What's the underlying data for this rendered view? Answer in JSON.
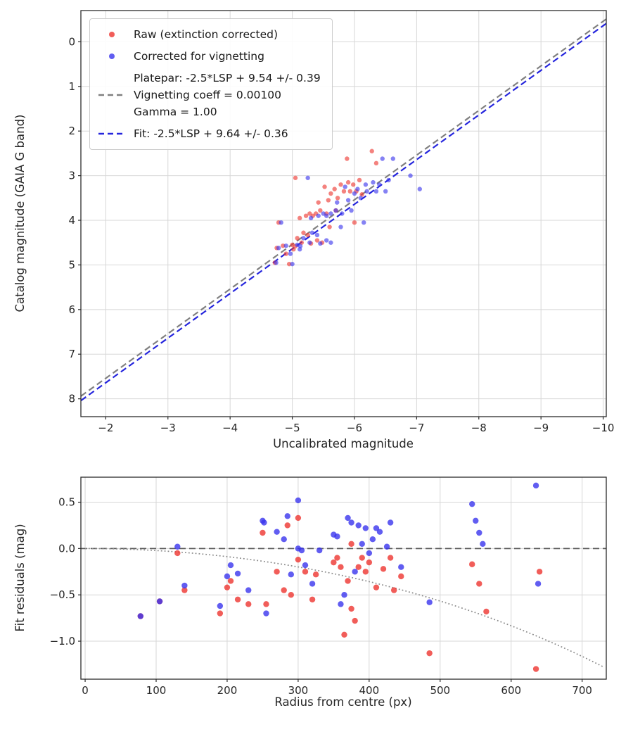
{
  "figure": {
    "background": "#ffffff"
  },
  "chart_data": [
    {
      "type": "scatter",
      "title": "",
      "xlabel": "Uncalibrated magnitude",
      "ylabel": "Catalog magnitude (GAIA G band)",
      "xlim": [
        -1.6,
        -10.05
      ],
      "ylim": [
        -0.7,
        8.4
      ],
      "x_axis_inverted": true,
      "grid": true,
      "x_tick_values": [
        -2,
        -3,
        -4,
        -5,
        -6,
        -7,
        -8,
        -9,
        -10
      ],
      "x_tick_labels": [
        "−2",
        "−3",
        "−4",
        "−5",
        "−6",
        "−7",
        "−8",
        "−9",
        "−10"
      ],
      "y_tick_values": [
        0,
        1,
        2,
        3,
        4,
        5,
        6,
        7,
        8
      ],
      "y_tick_labels": [
        "0",
        "1",
        "2",
        "3",
        "4",
        "5",
        "6",
        "7",
        "8"
      ],
      "series": [
        {
          "name": "raw-extinction-corrected",
          "label": "Raw (extinction corrected)",
          "color": "#ee352f",
          "points": [
            [
              -4.72,
              4.95
            ],
            [
              -4.75,
              4.62
            ],
            [
              -4.78,
              4.05
            ],
            [
              -4.85,
              4.57
            ],
            [
              -4.9,
              4.75
            ],
            [
              -4.95,
              4.98
            ],
            [
              -5.0,
              4.55
            ],
            [
              -5.02,
              4.65
            ],
            [
              -5.05,
              4.58
            ],
            [
              -5.05,
              3.05
            ],
            [
              -5.08,
              4.4
            ],
            [
              -5.12,
              3.95
            ],
            [
              -5.15,
              4.5
            ],
            [
              -5.18,
              4.28
            ],
            [
              -5.22,
              3.9
            ],
            [
              -5.25,
              4.33
            ],
            [
              -5.28,
              3.85
            ],
            [
              -5.3,
              4.52
            ],
            [
              -5.33,
              3.9
            ],
            [
              -5.38,
              3.85
            ],
            [
              -5.4,
              4.45
            ],
            [
              -5.42,
              3.6
            ],
            [
              -5.45,
              3.78
            ],
            [
              -5.48,
              4.5
            ],
            [
              -5.52,
              3.25
            ],
            [
              -5.55,
              3.85
            ],
            [
              -5.58,
              3.55
            ],
            [
              -5.6,
              4.15
            ],
            [
              -5.62,
              3.4
            ],
            [
              -5.68,
              3.3
            ],
            [
              -5.7,
              3.78
            ],
            [
              -5.73,
              3.5
            ],
            [
              -5.78,
              3.2
            ],
            [
              -5.83,
              3.35
            ],
            [
              -5.88,
              2.62
            ],
            [
              -5.9,
              3.15
            ],
            [
              -5.93,
              3.35
            ],
            [
              -5.98,
              3.2
            ],
            [
              -6.0,
              4.05
            ],
            [
              -6.03,
              3.35
            ],
            [
              -6.08,
              3.1
            ],
            [
              -6.12,
              3.42
            ],
            [
              -6.28,
              2.45
            ],
            [
              -6.35,
              2.72
            ]
          ]
        },
        {
          "name": "corrected-for-vignetting",
          "label": "Corrected for vignetting",
          "color": "#3a35ee",
          "points": [
            [
              -4.74,
              4.95
            ],
            [
              -4.78,
              4.62
            ],
            [
              -4.82,
              4.05
            ],
            [
              -4.9,
              4.57
            ],
            [
              -4.97,
              4.75
            ],
            [
              -5.0,
              4.98
            ],
            [
              -5.08,
              4.55
            ],
            [
              -5.12,
              4.65
            ],
            [
              -5.13,
              4.58
            ],
            [
              -5.25,
              3.05
            ],
            [
              -5.18,
              4.4
            ],
            [
              -5.3,
              3.95
            ],
            [
              -5.28,
              4.5
            ],
            [
              -5.32,
              4.28
            ],
            [
              -5.42,
              3.9
            ],
            [
              -5.4,
              4.33
            ],
            [
              -5.5,
              3.85
            ],
            [
              -5.45,
              4.52
            ],
            [
              -5.55,
              3.9
            ],
            [
              -5.62,
              3.85
            ],
            [
              -5.55,
              4.45
            ],
            [
              -5.72,
              3.6
            ],
            [
              -5.7,
              3.78
            ],
            [
              -5.62,
              4.5
            ],
            [
              -5.85,
              3.25
            ],
            [
              -5.8,
              3.85
            ],
            [
              -5.9,
              3.55
            ],
            [
              -5.78,
              4.15
            ],
            [
              -6.0,
              3.4
            ],
            [
              -6.05,
              3.3
            ],
            [
              -5.95,
              3.78
            ],
            [
              -6.1,
              3.5
            ],
            [
              -6.18,
              3.2
            ],
            [
              -6.2,
              3.35
            ],
            [
              -6.45,
              2.62
            ],
            [
              -6.3,
              3.15
            ],
            [
              -6.35,
              3.35
            ],
            [
              -6.4,
              3.2
            ],
            [
              -6.15,
              4.05
            ],
            [
              -6.5,
              3.35
            ],
            [
              -6.55,
              3.1
            ],
            [
              -6.62,
              2.62
            ],
            [
              -6.9,
              3.0
            ],
            [
              -7.05,
              3.3
            ]
          ]
        }
      ],
      "lines": [
        {
          "name": "platepar-line",
          "style": "dashed",
          "color": "#808080",
          "slope": 1,
          "intercept": 9.54,
          "width": 2.2
        },
        {
          "name": "fit-line",
          "style": "dashed",
          "color": "#2525dd",
          "slope": 1,
          "intercept": 9.64,
          "width": 2.2
        }
      ],
      "legend": {
        "position": "upper left",
        "entries": [
          {
            "name": "raw",
            "marker": "dot",
            "color": "#ee352f",
            "lines": [
              "Raw (extinction corrected)"
            ]
          },
          {
            "name": "vignetting",
            "marker": "dot",
            "color": "#3a35ee",
            "lines": [
              "Corrected for vignetting"
            ]
          },
          {
            "name": "platepar",
            "marker": "dash",
            "color": "#808080",
            "lines": [
              "Platepar: -2.5*LSP + 9.54 +/- 0.39",
              "Vignetting coeff = 0.00100",
              "Gamma = 1.00"
            ]
          },
          {
            "name": "fit",
            "marker": "dash",
            "color": "#2525dd",
            "lines": [
              "Fit: -2.5*LSP + 9.64 +/- 0.36"
            ]
          }
        ]
      }
    },
    {
      "type": "scatter",
      "title": "",
      "xlabel": "Radius from centre (px)",
      "ylabel": "Fit residuals (mag)",
      "xlim": [
        -6,
        734
      ],
      "ylim": [
        0.77,
        -1.41
      ],
      "grid": true,
      "x_tick_values": [
        0,
        100,
        200,
        300,
        400,
        500,
        600,
        700
      ],
      "x_tick_labels": [
        "0",
        "100",
        "200",
        "300",
        "400",
        "500",
        "600",
        "700"
      ],
      "y_tick_values": [
        -1.0,
        -0.5,
        0.0,
        0.5
      ],
      "y_tick_labels": [
        "−1.0",
        "−0.5",
        "0.0",
        "0.5"
      ],
      "series": [
        {
          "name": "raw-residuals",
          "label": "Raw (extinction corrected)",
          "color": "#ee352f",
          "points": [
            [
              78,
              -0.73
            ],
            [
              105,
              -0.57
            ],
            [
              130,
              -0.05
            ],
            [
              140,
              -0.45
            ],
            [
              190,
              -0.7
            ],
            [
              200,
              -0.42
            ],
            [
              205,
              -0.35
            ],
            [
              215,
              -0.55
            ],
            [
              230,
              -0.6
            ],
            [
              250,
              0.17
            ],
            [
              255,
              -0.6
            ],
            [
              270,
              -0.25
            ],
            [
              280,
              -0.45
            ],
            [
              285,
              0.25
            ],
            [
              290,
              -0.5
            ],
            [
              300,
              0.33
            ],
            [
              300,
              -0.12
            ],
            [
              310,
              -0.25
            ],
            [
              320,
              -0.55
            ],
            [
              325,
              -0.28
            ],
            [
              350,
              -0.15
            ],
            [
              355,
              -0.1
            ],
            [
              360,
              -0.2
            ],
            [
              365,
              -0.93
            ],
            [
              370,
              -0.35
            ],
            [
              375,
              0.05
            ],
            [
              375,
              -0.65
            ],
            [
              380,
              -0.78
            ],
            [
              385,
              -0.2
            ],
            [
              390,
              -0.1
            ],
            [
              395,
              -0.25
            ],
            [
              400,
              -0.15
            ],
            [
              410,
              -0.42
            ],
            [
              420,
              -0.22
            ],
            [
              430,
              -0.1
            ],
            [
              435,
              -0.45
            ],
            [
              445,
              -0.3
            ],
            [
              485,
              -1.13
            ],
            [
              545,
              -0.17
            ],
            [
              555,
              -0.38
            ],
            [
              565,
              -0.68
            ],
            [
              635,
              -1.3
            ],
            [
              640,
              -0.25
            ]
          ]
        },
        {
          "name": "corrected-residuals",
          "label": "Corrected for vignetting",
          "color": "#3a35ee",
          "points": [
            [
              78,
              -0.73
            ],
            [
              105,
              -0.57
            ],
            [
              130,
              0.02
            ],
            [
              140,
              -0.4
            ],
            [
              190,
              -0.62
            ],
            [
              200,
              -0.3
            ],
            [
              205,
              -0.18
            ],
            [
              215,
              -0.27
            ],
            [
              230,
              -0.45
            ],
            [
              250,
              0.3
            ],
            [
              252,
              0.28
            ],
            [
              255,
              -0.7
            ],
            [
              270,
              0.18
            ],
            [
              280,
              0.1
            ],
            [
              285,
              0.35
            ],
            [
              290,
              -0.28
            ],
            [
              300,
              0.52
            ],
            [
              300,
              0.0
            ],
            [
              305,
              -0.02
            ],
            [
              310,
              -0.18
            ],
            [
              320,
              -0.38
            ],
            [
              330,
              -0.02
            ],
            [
              350,
              0.15
            ],
            [
              355,
              0.13
            ],
            [
              360,
              -0.6
            ],
            [
              365,
              -0.5
            ],
            [
              370,
              0.33
            ],
            [
              375,
              0.28
            ],
            [
              380,
              -0.25
            ],
            [
              385,
              0.25
            ],
            [
              390,
              0.05
            ],
            [
              395,
              0.22
            ],
            [
              400,
              -0.05
            ],
            [
              405,
              0.1
            ],
            [
              410,
              0.22
            ],
            [
              415,
              0.18
            ],
            [
              425,
              0.02
            ],
            [
              430,
              0.28
            ],
            [
              445,
              -0.2
            ],
            [
              485,
              -0.58
            ],
            [
              545,
              0.48
            ],
            [
              550,
              0.3
            ],
            [
              555,
              0.17
            ],
            [
              560,
              0.05
            ],
            [
              635,
              0.68
            ],
            [
              638,
              -0.38
            ]
          ]
        }
      ],
      "lines": [
        {
          "name": "zero-line",
          "style": "dashed",
          "color": "#595959",
          "y": 0.0,
          "width": 1.8
        },
        {
          "name": "vignetting-model",
          "style": "dotted",
          "color": "#8a8a8a",
          "coeff": 0.001,
          "formula": "10*log10(cos(coeff*r))",
          "width": 1.7
        }
      ]
    }
  ]
}
